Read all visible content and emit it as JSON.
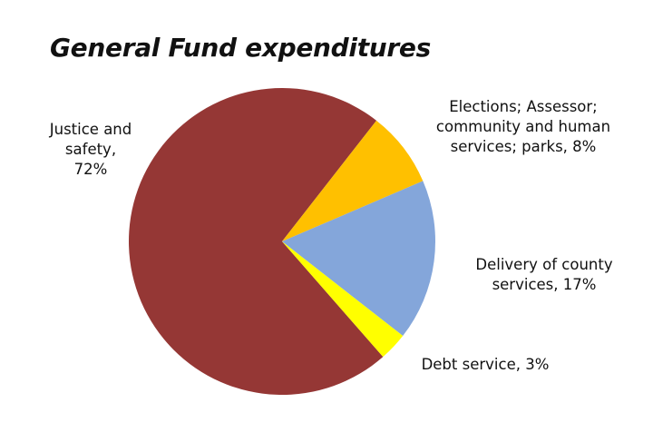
{
  "chart_data": {
    "type": "pie",
    "title": "General Fund expenditures",
    "slices": [
      {
        "name": "Justice and safety",
        "value": 72,
        "color": "#953735",
        "label_lines": [
          "Justice and",
          "safety,",
          "72%"
        ]
      },
      {
        "name": "Elections; Assessor; community and human services; parks",
        "value": 8,
        "color": "#FFC000",
        "label_lines": [
          "Elections; Assessor;",
          "community and human",
          "services; parks, 8%"
        ]
      },
      {
        "name": "Delivery of county services",
        "value": 17,
        "color": "#84A6DA",
        "label_lines": [
          "Delivery of county",
          "services, 17%"
        ]
      },
      {
        "name": "Debt service",
        "value": 3,
        "color": "#FFFF00",
        "label_lines": [
          "Debt service, 3%"
        ]
      }
    ],
    "legend": "none",
    "data_labels": "outside"
  }
}
